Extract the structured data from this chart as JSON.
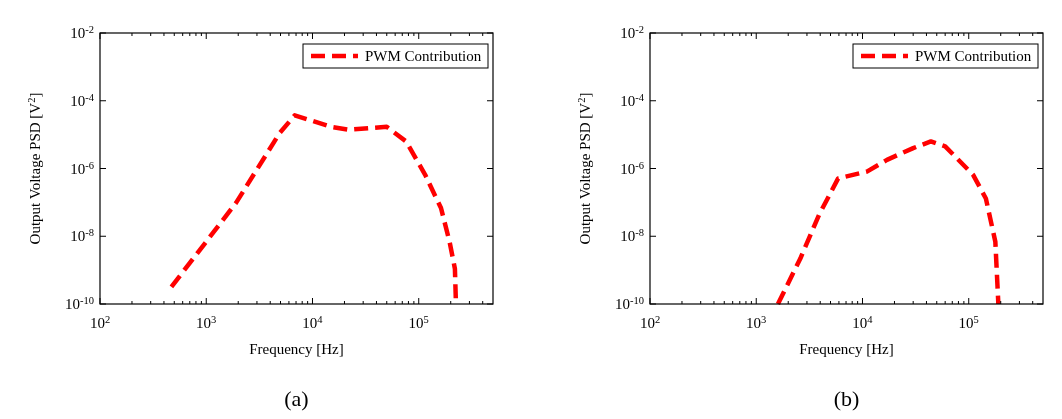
{
  "chart_data": [
    {
      "type": "line",
      "xlabel": "Frequency [Hz]",
      "ylabel": "Output Voltage PSD [V$^{2}$]",
      "log": "xy",
      "grid": false,
      "legend": "top right",
      "line_style": "dashed",
      "xlim": [
        100,
        500000
      ],
      "ylim": [
        1e-10,
        0.01
      ],
      "xticks": [
        {
          "value": 100,
          "label": "10$^{2}$"
        },
        {
          "value": 1000,
          "label": "10$^{3}$"
        },
        {
          "value": 10000,
          "label": "10$^{4}$"
        },
        {
          "value": 100000,
          "label": "10$^{5}$"
        }
      ],
      "yticks": [
        {
          "value": 1e-10,
          "label": "10$^{-10}$"
        },
        {
          "value": 1e-08,
          "label": "10$^{-8}$"
        },
        {
          "value": 1e-06,
          "label": "10$^{-6}$"
        },
        {
          "value": 0.0001,
          "label": "10$^{-4}$"
        },
        {
          "value": 0.01,
          "label": "10$^{-2}$"
        }
      ],
      "annotations": [
        "(a)"
      ],
      "series": [
        {
          "name": "PWM Contribution",
          "color": "#ff0000",
          "x": [
            470,
            1900,
            4900,
            6800,
            15000,
            22000,
            50000,
            76000,
            115000,
            162000,
            195000,
            219000,
            224000
          ],
          "values": [
            3.2e-10,
            9.5e-08,
            1.1e-05,
            3.7e-05,
            1.7e-05,
            1.4e-05,
            1.7e-05,
            6.3e-06,
            6.5e-07,
            6.8e-08,
            6.9e-09,
            1.1e-09,
            1e-10
          ]
        }
      ]
    },
    {
      "type": "line",
      "xlabel": "Frequency [Hz]",
      "ylabel": "Output Voltage PSD [V$^{2}$]",
      "log": "xy",
      "grid": false,
      "legend": "top right",
      "line_style": "dashed",
      "xlim": [
        100,
        500000
      ],
      "ylim": [
        1e-10,
        0.01
      ],
      "xticks": [
        {
          "value": 100,
          "label": "10$^{2}$"
        },
        {
          "value": 1000,
          "label": "10$^{3}$"
        },
        {
          "value": 10000,
          "label": "10$^{4}$"
        },
        {
          "value": 100000,
          "label": "10$^{5}$"
        }
      ],
      "yticks": [
        {
          "value": 1e-10,
          "label": "10$^{-10}$"
        },
        {
          "value": 1e-08,
          "label": "10$^{-8}$"
        },
        {
          "value": 1e-06,
          "label": "10$^{-6}$"
        },
        {
          "value": 0.0001,
          "label": "10$^{-4}$"
        },
        {
          "value": 0.01,
          "label": "10$^{-2}$"
        }
      ],
      "annotations": [
        "(b)"
      ],
      "series": [
        {
          "name": "PWM Contribution",
          "color": "#ff0000",
          "x": [
            1600,
            2600,
            3900,
            5900,
            11000,
            17000,
            30000,
            44000,
            60000,
            110000,
            145000,
            178000,
            190000
          ],
          "values": [
            1e-10,
            2.2e-09,
            4.3e-08,
            5.1e-07,
            8.1e-07,
            1.8e-06,
            4e-06,
            6.3e-06,
            4.5e-06,
            6.5e-07,
            1.3e-07,
            6.9e-09,
            1e-10
          ]
        }
      ]
    }
  ]
}
